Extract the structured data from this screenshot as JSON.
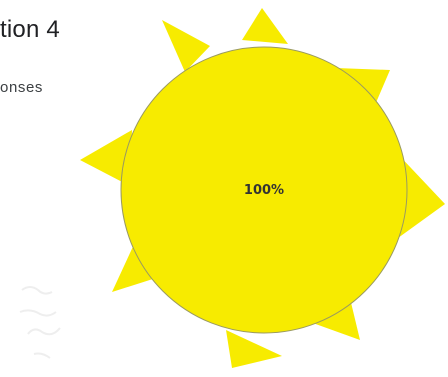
{
  "header": {
    "title": "tion 4",
    "subtitle": "onses"
  },
  "colors": {
    "slice": "#f7eb00",
    "outline": "#9a9a60",
    "label": "#333333"
  },
  "chart_data": {
    "type": "pie",
    "categories": [
      ""
    ],
    "values": [
      100
    ],
    "data_labels": [
      "100%"
    ],
    "title": "",
    "legend": "none"
  }
}
